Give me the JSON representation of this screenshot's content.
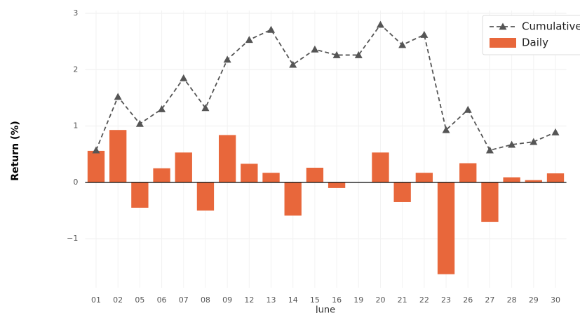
{
  "chart_data": {
    "type": "bar",
    "xlabel": "June",
    "ylabel": "Return (%)",
    "categories": [
      "01",
      "02",
      "05",
      "06",
      "07",
      "08",
      "09",
      "12",
      "13",
      "14",
      "15",
      "16",
      "19",
      "20",
      "21",
      "22",
      "23",
      "26",
      "27",
      "28",
      "29",
      "30"
    ],
    "series": [
      {
        "name": "Cumulative",
        "type": "line",
        "color": "#555555",
        "values": [
          0.57,
          1.52,
          1.04,
          1.3,
          1.85,
          1.32,
          2.18,
          2.53,
          2.71,
          2.09,
          2.36,
          2.26,
          2.26,
          2.8,
          2.44,
          2.62,
          0.93,
          1.29,
          0.57,
          0.67,
          0.72,
          0.89
        ]
      },
      {
        "name": "Daily",
        "type": "bar",
        "color": "#e8673b",
        "values": [
          0.56,
          0.93,
          -0.45,
          0.25,
          0.53,
          -0.5,
          0.84,
          0.33,
          0.17,
          -0.59,
          0.26,
          -0.1,
          0,
          0.53,
          -0.35,
          0.17,
          -1.63,
          0.34,
          -0.7,
          0.09,
          0.04,
          0.16
        ]
      }
    ],
    "ylim": [
      -1.87,
      3.05
    ],
    "yticks": [
      {
        "value": -1,
        "label": "−1"
      },
      0,
      1,
      2,
      3
    ],
    "grid": true,
    "legend": "upper right"
  }
}
